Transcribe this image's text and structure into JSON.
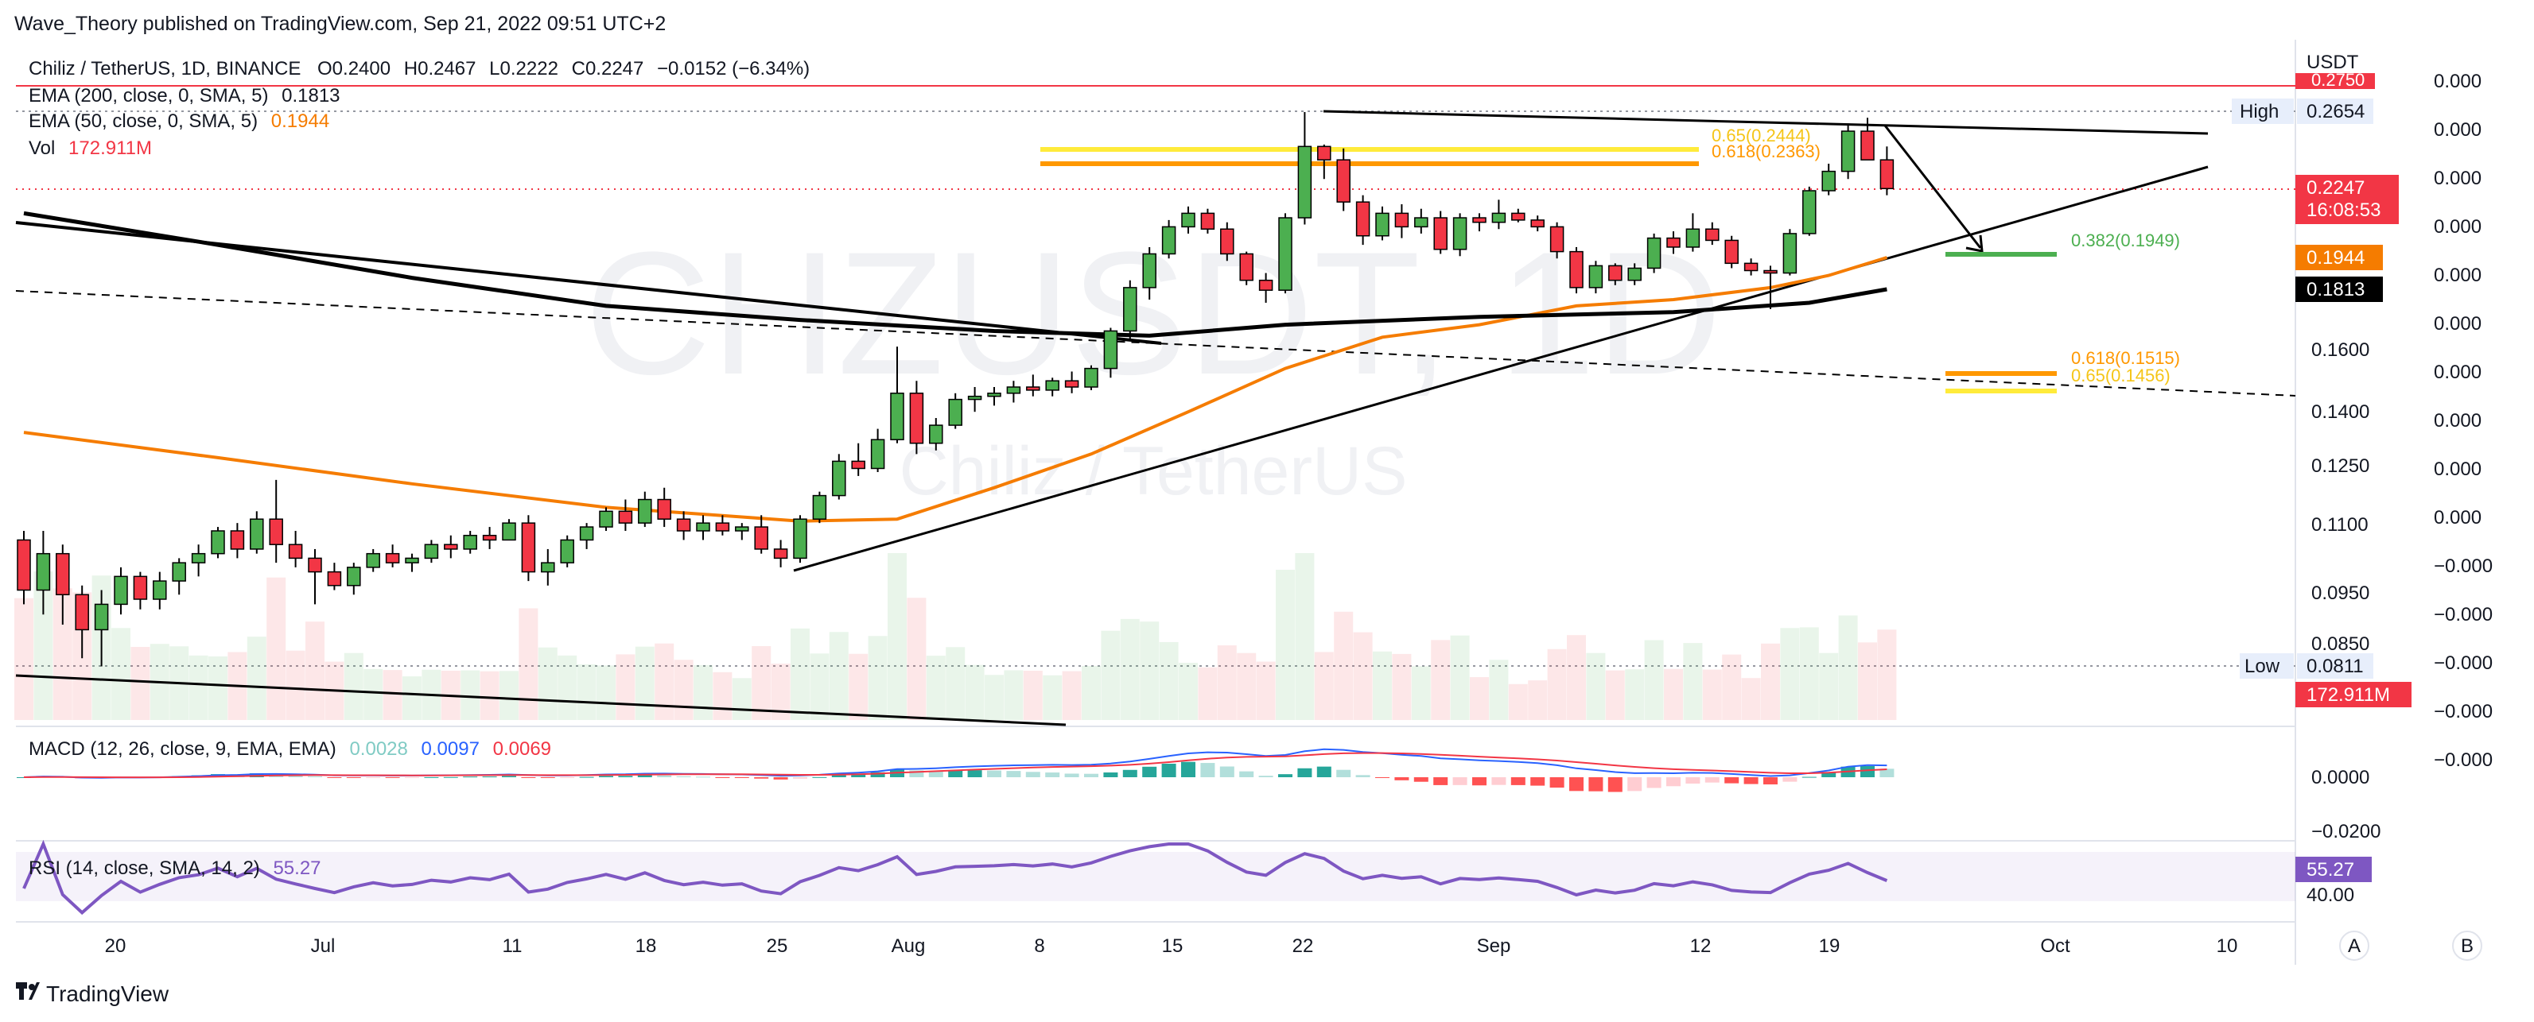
{
  "header": {
    "published": "Wave_Theory published on TradingView.com, Sep 21, 2022 09:51 UTC+2"
  },
  "legend": {
    "symbol": "Chiliz / TetherUS, 1D, BINANCE",
    "o_label": "O",
    "o": "0.2400",
    "h_label": "H",
    "h": "0.2467",
    "l_label": "L",
    "l": "0.2222",
    "c_label": "C",
    "c": "0.2247",
    "change": "−0.0152 (−6.34%)",
    "ema200_label": "EMA (200, close, 0, SMA, 5)",
    "ema200_value": "0.1813",
    "ema50_label": "EMA (50, close, 0, SMA, 5)",
    "ema50_value": "0.1944",
    "vol_label": "Vol",
    "vol_value": "172.911M"
  },
  "watermark": {
    "ticker": "CHZUSDT, 1D",
    "name": "Chiliz / TetherUS"
  },
  "price_axis": {
    "currency": "USDT",
    "ticks": [
      "0.1600",
      "0.1400",
      "0.1250",
      "0.1100",
      "0.0950",
      "0.0850"
    ],
    "tags": {
      "high_label": "High",
      "high_value": "0.2654",
      "top_line_value": "0.2750",
      "last_price": "0.2247",
      "countdown": "16:08:53",
      "ema50": "0.1944",
      "ema200": "0.1813",
      "low_label": "Low",
      "low_value": "0.0811",
      "volume": "172.911M"
    }
  },
  "volume_axis_ticks": [
    "0.000",
    "0.000",
    "0.000",
    "0.000",
    "0.000",
    "0.000",
    "0.000",
    "0.000",
    "0.000",
    "0.000",
    "−0.000",
    "−0.000",
    "−0.000",
    "−0.000",
    "−0.000"
  ],
  "fib_levels": {
    "upper_65": "0.65(0.2444)",
    "upper_618": "0.618(0.2363)",
    "mid_382": "0.382(0.1949)",
    "lower_618": "0.618(0.1515)",
    "lower_65": "0.65(0.1456)"
  },
  "macd": {
    "label": "MACD (12, 26, close, 9, EMA, EMA)",
    "hist": "0.0028",
    "macd": "0.0097",
    "signal": "0.0069",
    "ticks": [
      "0.0000",
      "−0.0200"
    ]
  },
  "rsi": {
    "label": "RSI (14, close, SMA, 14, 2)",
    "value": "55.27",
    "tag": "55.27",
    "tick": "40.00"
  },
  "time_axis": {
    "labels": [
      "20",
      "Jul",
      "11",
      "18",
      "25",
      "Aug",
      "8",
      "15",
      "22",
      "Sep",
      "12",
      "19",
      "Oct",
      "10"
    ]
  },
  "buttons": {
    "a": "A",
    "b": "B"
  },
  "footer": {
    "brand": "TradingView"
  },
  "colors": {
    "up": "#4caf50",
    "down": "#f23645",
    "ema50": "#f57c00",
    "ema200": "#000000",
    "fib_yellow": "#ffeb3b",
    "fib_orange": "#ff9800",
    "fib_green": "#4caf50",
    "macd": "#2962ff",
    "signal": "#f23645",
    "rsi": "#7e57c2"
  },
  "chart_data": {
    "type": "candlestick",
    "x_label_ticks": [
      "20",
      "Jul",
      "11",
      "18",
      "25",
      "Aug",
      "8",
      "15",
      "22",
      "Sep",
      "12",
      "19",
      "Oct",
      "10"
    ],
    "ohlc": [
      [
        0.108,
        0.11,
        0.094,
        0.097
      ],
      [
        0.097,
        0.11,
        0.092,
        0.105
      ],
      [
        0.105,
        0.107,
        0.09,
        0.096
      ],
      [
        0.096,
        0.098,
        0.083,
        0.089
      ],
      [
        0.089,
        0.097,
        0.081,
        0.094
      ],
      [
        0.094,
        0.102,
        0.092,
        0.1
      ],
      [
        0.1,
        0.101,
        0.093,
        0.095
      ],
      [
        0.095,
        0.101,
        0.093,
        0.099
      ],
      [
        0.099,
        0.104,
        0.096,
        0.103
      ],
      [
        0.103,
        0.107,
        0.1,
        0.105
      ],
      [
        0.105,
        0.111,
        0.104,
        0.11
      ],
      [
        0.11,
        0.112,
        0.104,
        0.106
      ],
      [
        0.106,
        0.115,
        0.105,
        0.113
      ],
      [
        0.113,
        0.123,
        0.103,
        0.107
      ],
      [
        0.107,
        0.11,
        0.102,
        0.104
      ],
      [
        0.104,
        0.106,
        0.094,
        0.101
      ],
      [
        0.101,
        0.103,
        0.097,
        0.098
      ],
      [
        0.098,
        0.103,
        0.096,
        0.102
      ],
      [
        0.102,
        0.106,
        0.101,
        0.105
      ],
      [
        0.105,
        0.107,
        0.102,
        0.103
      ],
      [
        0.103,
        0.105,
        0.101,
        0.104
      ],
      [
        0.104,
        0.108,
        0.103,
        0.107
      ],
      [
        0.107,
        0.109,
        0.104,
        0.106
      ],
      [
        0.106,
        0.11,
        0.105,
        0.109
      ],
      [
        0.109,
        0.111,
        0.106,
        0.108
      ],
      [
        0.108,
        0.113,
        0.108,
        0.112
      ],
      [
        0.112,
        0.114,
        0.099,
        0.101
      ],
      [
        0.101,
        0.106,
        0.098,
        0.103
      ],
      [
        0.103,
        0.109,
        0.102,
        0.108
      ],
      [
        0.108,
        0.112,
        0.106,
        0.111
      ],
      [
        0.111,
        0.116,
        0.11,
        0.115
      ],
      [
        0.115,
        0.118,
        0.11,
        0.112
      ],
      [
        0.112,
        0.12,
        0.111,
        0.118
      ],
      [
        0.118,
        0.121,
        0.111,
        0.113
      ],
      [
        0.113,
        0.115,
        0.108,
        0.11
      ],
      [
        0.11,
        0.114,
        0.108,
        0.112
      ],
      [
        0.112,
        0.114,
        0.109,
        0.11
      ],
      [
        0.11,
        0.112,
        0.108,
        0.111
      ],
      [
        0.111,
        0.114,
        0.105,
        0.106
      ],
      [
        0.106,
        0.108,
        0.102,
        0.104
      ],
      [
        0.104,
        0.114,
        0.103,
        0.113
      ],
      [
        0.113,
        0.12,
        0.112,
        0.119
      ],
      [
        0.119,
        0.13,
        0.118,
        0.128
      ],
      [
        0.128,
        0.133,
        0.124,
        0.126
      ],
      [
        0.126,
        0.137,
        0.125,
        0.134
      ],
      [
        0.134,
        0.163,
        0.133,
        0.148
      ],
      [
        0.148,
        0.152,
        0.13,
        0.133
      ],
      [
        0.133,
        0.14,
        0.131,
        0.138
      ],
      [
        0.138,
        0.148,
        0.137,
        0.146
      ],
      [
        0.146,
        0.15,
        0.142,
        0.147
      ],
      [
        0.147,
        0.15,
        0.144,
        0.148
      ],
      [
        0.148,
        0.152,
        0.145,
        0.15
      ],
      [
        0.15,
        0.154,
        0.147,
        0.149
      ],
      [
        0.149,
        0.153,
        0.147,
        0.152
      ],
      [
        0.152,
        0.155,
        0.148,
        0.15
      ],
      [
        0.15,
        0.157,
        0.149,
        0.156
      ],
      [
        0.156,
        0.169,
        0.153,
        0.168
      ],
      [
        0.168,
        0.185,
        0.165,
        0.182
      ],
      [
        0.182,
        0.199,
        0.178,
        0.196
      ],
      [
        0.196,
        0.211,
        0.194,
        0.208
      ],
      [
        0.208,
        0.217,
        0.205,
        0.214
      ],
      [
        0.214,
        0.216,
        0.205,
        0.207
      ],
      [
        0.207,
        0.21,
        0.193,
        0.196
      ],
      [
        0.196,
        0.197,
        0.183,
        0.185
      ],
      [
        0.185,
        0.188,
        0.177,
        0.181
      ],
      [
        0.181,
        0.214,
        0.18,
        0.212
      ],
      [
        0.212,
        0.265,
        0.209,
        0.247
      ],
      [
        0.247,
        0.248,
        0.23,
        0.24
      ],
      [
        0.24,
        0.246,
        0.215,
        0.219
      ],
      [
        0.219,
        0.222,
        0.2,
        0.204
      ],
      [
        0.204,
        0.217,
        0.202,
        0.214
      ],
      [
        0.214,
        0.218,
        0.203,
        0.208
      ],
      [
        0.208,
        0.216,
        0.205,
        0.212
      ],
      [
        0.212,
        0.215,
        0.196,
        0.198
      ],
      [
        0.198,
        0.214,
        0.195,
        0.212
      ],
      [
        0.212,
        0.214,
        0.206,
        0.21
      ],
      [
        0.21,
        0.22,
        0.207,
        0.214
      ],
      [
        0.214,
        0.216,
        0.21,
        0.211
      ],
      [
        0.211,
        0.213,
        0.206,
        0.208
      ],
      [
        0.208,
        0.21,
        0.194,
        0.197
      ],
      [
        0.197,
        0.199,
        0.18,
        0.182
      ],
      [
        0.182,
        0.193,
        0.18,
        0.191
      ],
      [
        0.191,
        0.192,
        0.183,
        0.185
      ],
      [
        0.185,
        0.192,
        0.183,
        0.19
      ],
      [
        0.19,
        0.205,
        0.188,
        0.203
      ],
      [
        0.203,
        0.206,
        0.196,
        0.199
      ],
      [
        0.199,
        0.214,
        0.197,
        0.207
      ],
      [
        0.207,
        0.21,
        0.2,
        0.202
      ],
      [
        0.202,
        0.204,
        0.19,
        0.192
      ],
      [
        0.192,
        0.194,
        0.187,
        0.189
      ],
      [
        0.189,
        0.191,
        0.175,
        0.188
      ],
      [
        0.188,
        0.207,
        0.187,
        0.205
      ],
      [
        0.205,
        0.226,
        0.204,
        0.224
      ],
      [
        0.224,
        0.238,
        0.222,
        0.234
      ],
      [
        0.234,
        0.259,
        0.23,
        0.255
      ],
      [
        0.255,
        0.262,
        0.24,
        0.24
      ],
      [
        0.24,
        0.247,
        0.222,
        0.225
      ]
    ],
    "ema50": [
      [
        0,
        0.136
      ],
      [
        10,
        0.129
      ],
      [
        20,
        0.122
      ],
      [
        30,
        0.116
      ],
      [
        40,
        0.1125
      ],
      [
        45,
        0.113
      ],
      [
        50,
        0.121
      ],
      [
        55,
        0.13
      ],
      [
        60,
        0.142
      ],
      [
        65,
        0.156
      ],
      [
        70,
        0.166
      ],
      [
        75,
        0.17
      ],
      [
        80,
        0.176
      ],
      [
        85,
        0.178
      ],
      [
        90,
        0.182
      ],
      [
        93,
        0.187
      ],
      [
        96,
        0.1944
      ]
    ],
    "ema200": [
      [
        0,
        0.214
      ],
      [
        10,
        0.2
      ],
      [
        20,
        0.186
      ],
      [
        30,
        0.176
      ],
      [
        40,
        0.1715
      ],
      [
        50,
        0.168
      ],
      [
        58,
        0.1665
      ],
      [
        65,
        0.17
      ],
      [
        75,
        0.1725
      ],
      [
        85,
        0.174
      ],
      [
        92,
        0.177
      ],
      [
        96,
        0.1813
      ]
    ]
  }
}
